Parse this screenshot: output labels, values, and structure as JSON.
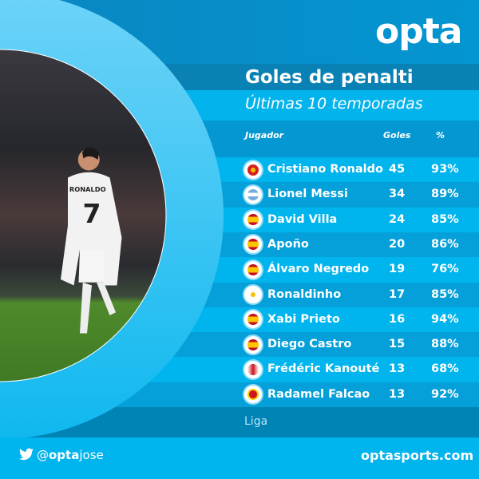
{
  "brand": {
    "logo": "opta",
    "accent": "#00b4ee"
  },
  "title": "Goles de penalti",
  "subtitle": "Últimas 10 temporadas",
  "columns": {
    "player": "Jugador",
    "goals": "Goles",
    "pct": "%"
  },
  "rows": [
    {
      "name": "Cristiano Ronaldo",
      "goals": "45",
      "pct": "93%",
      "flag": "portugal"
    },
    {
      "name": "Lionel Messi",
      "goals": "34",
      "pct": "89%",
      "flag": "argentina"
    },
    {
      "name": "David Villa",
      "goals": "24",
      "pct": "85%",
      "flag": "spain"
    },
    {
      "name": "Apoño",
      "goals": "20",
      "pct": "86%",
      "flag": "spain"
    },
    {
      "name": "Álvaro Negredo",
      "goals": "19",
      "pct": "76%",
      "flag": "spain"
    },
    {
      "name": "Ronaldinho",
      "goals": "17",
      "pct": "85%",
      "flag": "brazil"
    },
    {
      "name": "Xabi Prieto",
      "goals": "16",
      "pct": "94%",
      "flag": "spain"
    },
    {
      "name": "Diego Castro",
      "goals": "15",
      "pct": "88%",
      "flag": "spain"
    },
    {
      "name": "Frédéric Kanouté",
      "goals": "13",
      "pct": "68%",
      "flag": "mali"
    },
    {
      "name": "Radamel Falcao",
      "goals": "13",
      "pct": "92%",
      "flag": "colombia"
    }
  ],
  "competition": "Liga",
  "footer": {
    "handle_prefix": "@",
    "handle_brand": "opta",
    "handle_suffix": "jose",
    "site": "optasports.com"
  },
  "photo": {
    "shirt_name": "RONALDO",
    "shirt_number": "7"
  }
}
